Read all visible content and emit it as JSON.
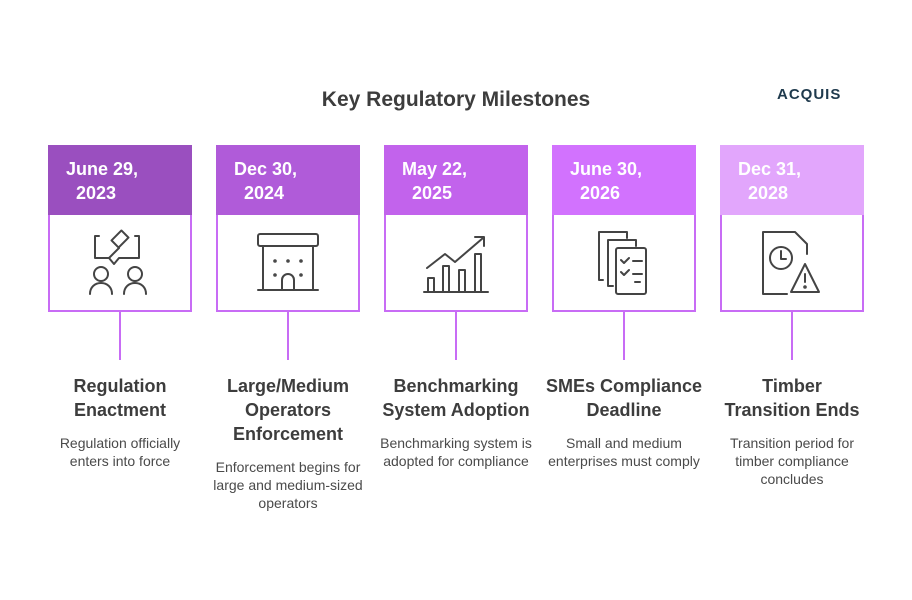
{
  "title": "Key Regulatory Milestones",
  "logo": "ACQUIS",
  "milestones": [
    {
      "date1": "June 29,",
      "date2": "2023",
      "color": "#9a4fbf",
      "icon": "gavel-discussion-icon",
      "heading": "Regulation Enactment",
      "desc": "Regulation officially enters into force"
    },
    {
      "date1": "Dec 30,",
      "date2": "2024",
      "color": "#b05bd9",
      "icon": "building-icon",
      "heading": "Large/Medium Operators Enforcement",
      "desc": "Enforcement begins for large and medium-sized operators"
    },
    {
      "date1": "May 22,",
      "date2": "2025",
      "color": "#c263ec",
      "icon": "bar-chart-growth-icon",
      "heading": "Benchmarking System Adoption",
      "desc": "Benchmarking system is adopted for compliance"
    },
    {
      "date1": "June 30,",
      "date2": "2026",
      "color": "#d272fe",
      "icon": "checklist-documents-icon",
      "heading": "SMEs Compliance Deadline",
      "desc": "Small and medium enterprises must comply"
    },
    {
      "date1": "Dec 31,",
      "date2": "2028",
      "color": "#e2a6fc",
      "icon": "document-clock-warning-icon",
      "heading": "Timber Transition Ends",
      "desc": "Transition period for timber compliance concludes"
    }
  ]
}
